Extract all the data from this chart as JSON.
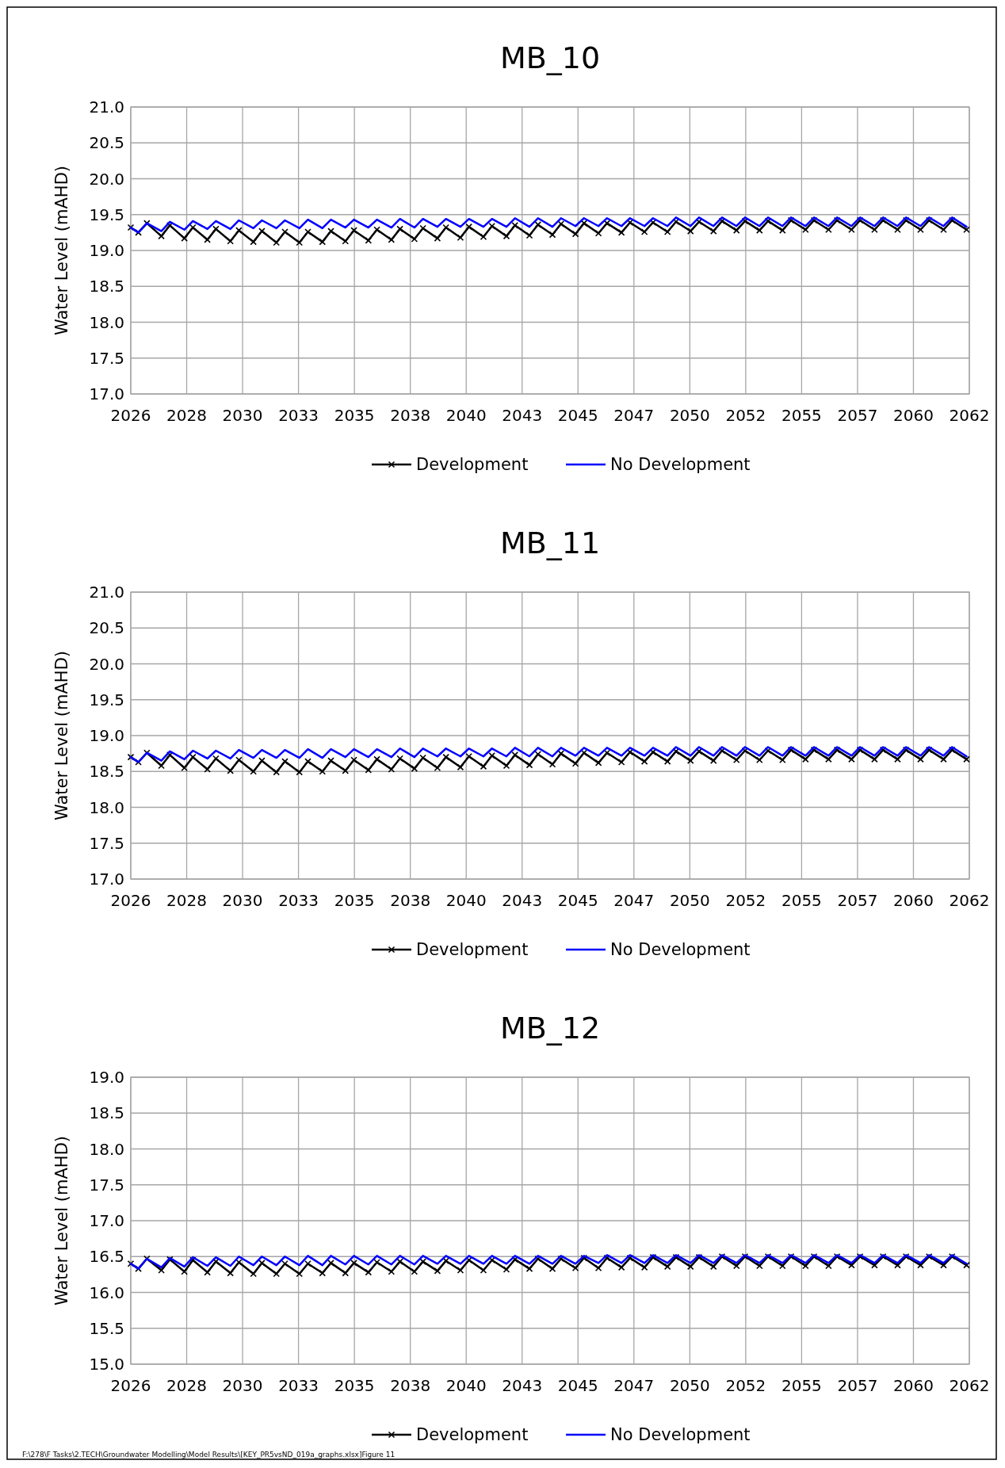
{
  "chart_data": [
    {
      "type": "line",
      "title": "MB_10",
      "ylabel": "Water Level (mAHD)",
      "grid": true,
      "legend": "bottom",
      "x": [
        2025.55,
        2025.88,
        2026.25,
        2026.88,
        2027.25,
        2027.88,
        2028.25,
        2028.88,
        2029.25,
        2029.88,
        2030.25,
        2030.88,
        2031.25,
        2031.88,
        2032.25,
        2032.88,
        2033.25,
        2033.88,
        2034.25,
        2034.88,
        2035.25,
        2035.88,
        2036.25,
        2036.88,
        2037.25,
        2037.88,
        2038.25,
        2038.88,
        2039.25,
        2039.88,
        2040.25,
        2040.88,
        2041.25,
        2041.88,
        2042.25,
        2042.88,
        2043.25,
        2043.88,
        2044.25,
        2044.88,
        2045.25,
        2045.88,
        2046.25,
        2046.88,
        2047.25,
        2047.88,
        2048.25,
        2048.88,
        2049.25,
        2049.88,
        2050.25,
        2050.88,
        2051.25,
        2051.88,
        2052.25,
        2052.88,
        2053.25,
        2053.88,
        2054.25,
        2054.88,
        2055.25,
        2055.88,
        2056.25,
        2056.88,
        2057.25,
        2057.88,
        2058.25,
        2058.88,
        2059.25,
        2059.88,
        2060.25,
        2060.88,
        2061.25,
        2061.88
      ],
      "xlim": [
        2025.55,
        2062.0
      ],
      "xticks": [
        {
          "value": 2025.55,
          "label": "2026"
        },
        {
          "value": 2027.98,
          "label": "2028"
        },
        {
          "value": 2030.41,
          "label": "2030"
        },
        {
          "value": 2032.84,
          "label": "2033"
        },
        {
          "value": 2035.27,
          "label": "2035"
        },
        {
          "value": 2037.7,
          "label": "2038"
        },
        {
          "value": 2040.13,
          "label": "2040"
        },
        {
          "value": 2042.56,
          "label": "2043"
        },
        {
          "value": 2044.99,
          "label": "2045"
        },
        {
          "value": 2047.42,
          "label": "2047"
        },
        {
          "value": 2049.85,
          "label": "2050"
        },
        {
          "value": 2052.28,
          "label": "2052"
        },
        {
          "value": 2054.71,
          "label": "2055"
        },
        {
          "value": 2057.14,
          "label": "2057"
        },
        {
          "value": 2059.57,
          "label": "2060"
        },
        {
          "value": 2062.0,
          "label": "2062"
        }
      ],
      "ylim": [
        17,
        21
      ],
      "yticks": [
        {
          "value": 17,
          "label": "17.0"
        },
        {
          "value": 17.5,
          "label": "17.5"
        },
        {
          "value": 18,
          "label": "18.0"
        },
        {
          "value": 18.5,
          "label": "18.5"
        },
        {
          "value": 19,
          "label": "19.0"
        },
        {
          "value": 19.5,
          "label": "19.5"
        },
        {
          "value": 20,
          "label": "20.0"
        },
        {
          "value": 20.5,
          "label": "20.5"
        },
        {
          "value": 21,
          "label": "21.0"
        }
      ],
      "series": [
        {
          "name": "Development",
          "color": "#000000",
          "marker": "cross",
          "values": [
            19.32,
            19.25,
            19.38,
            19.2,
            19.35,
            19.17,
            19.32,
            19.15,
            19.3,
            19.13,
            19.28,
            19.12,
            19.27,
            19.11,
            19.26,
            19.11,
            19.26,
            19.12,
            19.27,
            19.13,
            19.28,
            19.14,
            19.29,
            19.15,
            19.3,
            19.16,
            19.31,
            19.17,
            19.32,
            19.18,
            19.33,
            19.19,
            19.34,
            19.2,
            19.35,
            19.21,
            19.36,
            19.22,
            19.37,
            19.23,
            19.38,
            19.24,
            19.38,
            19.25,
            19.39,
            19.26,
            19.39,
            19.26,
            19.4,
            19.27,
            19.4,
            19.27,
            19.41,
            19.28,
            19.41,
            19.28,
            19.41,
            19.28,
            19.42,
            19.29,
            19.42,
            19.29,
            19.42,
            19.29,
            19.42,
            19.29,
            19.42,
            19.29,
            19.42,
            19.29,
            19.42,
            19.29,
            19.42,
            19.29
          ]
        },
        {
          "name": "No Development",
          "color": "#0000ff",
          "values": [
            19.32,
            19.25,
            19.38,
            19.27,
            19.4,
            19.29,
            19.41,
            19.3,
            19.41,
            19.3,
            19.42,
            19.31,
            19.42,
            19.31,
            19.42,
            19.31,
            19.43,
            19.31,
            19.43,
            19.32,
            19.43,
            19.32,
            19.43,
            19.32,
            19.44,
            19.32,
            19.44,
            19.33,
            19.44,
            19.33,
            19.44,
            19.33,
            19.44,
            19.33,
            19.45,
            19.33,
            19.45,
            19.33,
            19.45,
            19.34,
            19.45,
            19.34,
            19.45,
            19.34,
            19.45,
            19.34,
            19.45,
            19.34,
            19.46,
            19.34,
            19.46,
            19.34,
            19.46,
            19.34,
            19.46,
            19.34,
            19.46,
            19.34,
            19.46,
            19.34,
            19.46,
            19.34,
            19.46,
            19.34,
            19.46,
            19.34,
            19.46,
            19.34,
            19.46,
            19.34,
            19.46,
            19.34,
            19.46,
            19.33
          ]
        }
      ]
    },
    {
      "type": "line",
      "title": "MB_11",
      "ylabel": "Water Level (mAHD)",
      "grid": true,
      "legend": "bottom",
      "x": [
        2025.55,
        2025.88,
        2026.25,
        2026.88,
        2027.25,
        2027.88,
        2028.25,
        2028.88,
        2029.25,
        2029.88,
        2030.25,
        2030.88,
        2031.25,
        2031.88,
        2032.25,
        2032.88,
        2033.25,
        2033.88,
        2034.25,
        2034.88,
        2035.25,
        2035.88,
        2036.25,
        2036.88,
        2037.25,
        2037.88,
        2038.25,
        2038.88,
        2039.25,
        2039.88,
        2040.25,
        2040.88,
        2041.25,
        2041.88,
        2042.25,
        2042.88,
        2043.25,
        2043.88,
        2044.25,
        2044.88,
        2045.25,
        2045.88,
        2046.25,
        2046.88,
        2047.25,
        2047.88,
        2048.25,
        2048.88,
        2049.25,
        2049.88,
        2050.25,
        2050.88,
        2051.25,
        2051.88,
        2052.25,
        2052.88,
        2053.25,
        2053.88,
        2054.25,
        2054.88,
        2055.25,
        2055.88,
        2056.25,
        2056.88,
        2057.25,
        2057.88,
        2058.25,
        2058.88,
        2059.25,
        2059.88,
        2060.25,
        2060.88,
        2061.25,
        2061.88
      ],
      "xlim": [
        2025.55,
        2062.0
      ],
      "xticks": [
        {
          "value": 2025.55,
          "label": "2026"
        },
        {
          "value": 2027.98,
          "label": "2028"
        },
        {
          "value": 2030.41,
          "label": "2030"
        },
        {
          "value": 2032.84,
          "label": "2033"
        },
        {
          "value": 2035.27,
          "label": "2035"
        },
        {
          "value": 2037.7,
          "label": "2038"
        },
        {
          "value": 2040.13,
          "label": "2040"
        },
        {
          "value": 2042.56,
          "label": "2043"
        },
        {
          "value": 2044.99,
          "label": "2045"
        },
        {
          "value": 2047.42,
          "label": "2047"
        },
        {
          "value": 2049.85,
          "label": "2050"
        },
        {
          "value": 2052.28,
          "label": "2052"
        },
        {
          "value": 2054.71,
          "label": "2055"
        },
        {
          "value": 2057.14,
          "label": "2057"
        },
        {
          "value": 2059.57,
          "label": "2060"
        },
        {
          "value": 2062.0,
          "label": "2062"
        }
      ],
      "ylim": [
        17,
        21
      ],
      "yticks": [
        {
          "value": 17,
          "label": "17.0"
        },
        {
          "value": 17.5,
          "label": "17.5"
        },
        {
          "value": 18,
          "label": "18.0"
        },
        {
          "value": 18.5,
          "label": "18.5"
        },
        {
          "value": 19,
          "label": "19.0"
        },
        {
          "value": 19.5,
          "label": "19.5"
        },
        {
          "value": 20,
          "label": "20.0"
        },
        {
          "value": 20.5,
          "label": "20.5"
        },
        {
          "value": 21,
          "label": "21.0"
        }
      ],
      "series": [
        {
          "name": "Development",
          "color": "#000000",
          "marker": "cross",
          "values": [
            18.7,
            18.63,
            18.76,
            18.58,
            18.73,
            18.55,
            18.7,
            18.53,
            18.68,
            18.51,
            18.66,
            18.5,
            18.65,
            18.49,
            18.64,
            18.49,
            18.64,
            18.5,
            18.65,
            18.51,
            18.66,
            18.52,
            18.67,
            18.53,
            18.68,
            18.54,
            18.69,
            18.55,
            18.7,
            18.56,
            18.71,
            18.57,
            18.72,
            18.58,
            18.73,
            18.59,
            18.74,
            18.6,
            18.75,
            18.61,
            18.76,
            18.62,
            18.76,
            18.63,
            18.77,
            18.64,
            18.77,
            18.64,
            18.78,
            18.65,
            18.78,
            18.65,
            18.79,
            18.66,
            18.79,
            18.66,
            18.79,
            18.66,
            18.8,
            18.67,
            18.8,
            18.67,
            18.8,
            18.67,
            18.8,
            18.67,
            18.8,
            18.67,
            18.8,
            18.67,
            18.8,
            18.67,
            18.8,
            18.67
          ]
        },
        {
          "name": "No Development",
          "color": "#0000ff",
          "values": [
            18.7,
            18.63,
            18.76,
            18.65,
            18.78,
            18.67,
            18.79,
            18.68,
            18.79,
            18.68,
            18.8,
            18.69,
            18.8,
            18.69,
            18.8,
            18.69,
            18.81,
            18.69,
            18.81,
            18.7,
            18.81,
            18.7,
            18.81,
            18.7,
            18.82,
            18.7,
            18.82,
            18.71,
            18.82,
            18.71,
            18.82,
            18.71,
            18.82,
            18.71,
            18.83,
            18.71,
            18.83,
            18.71,
            18.83,
            18.72,
            18.83,
            18.72,
            18.83,
            18.72,
            18.83,
            18.72,
            18.83,
            18.72,
            18.84,
            18.72,
            18.84,
            18.72,
            18.84,
            18.72,
            18.84,
            18.72,
            18.84,
            18.72,
            18.84,
            18.72,
            18.84,
            18.72,
            18.84,
            18.72,
            18.84,
            18.72,
            18.84,
            18.72,
            18.84,
            18.72,
            18.84,
            18.72,
            18.84,
            18.71
          ]
        }
      ]
    },
    {
      "type": "line",
      "title": "MB_12",
      "ylabel": "Water Level (mAHD)",
      "grid": true,
      "legend": "bottom",
      "x": [
        2025.55,
        2025.88,
        2026.25,
        2026.88,
        2027.25,
        2027.88,
        2028.25,
        2028.88,
        2029.25,
        2029.88,
        2030.25,
        2030.88,
        2031.25,
        2031.88,
        2032.25,
        2032.88,
        2033.25,
        2033.88,
        2034.25,
        2034.88,
        2035.25,
        2035.88,
        2036.25,
        2036.88,
        2037.25,
        2037.88,
        2038.25,
        2038.88,
        2039.25,
        2039.88,
        2040.25,
        2040.88,
        2041.25,
        2041.88,
        2042.25,
        2042.88,
        2043.25,
        2043.88,
        2044.25,
        2044.88,
        2045.25,
        2045.88,
        2046.25,
        2046.88,
        2047.25,
        2047.88,
        2048.25,
        2048.88,
        2049.25,
        2049.88,
        2050.25,
        2050.88,
        2051.25,
        2051.88,
        2052.25,
        2052.88,
        2053.25,
        2053.88,
        2054.25,
        2054.88,
        2055.25,
        2055.88,
        2056.25,
        2056.88,
        2057.25,
        2057.88,
        2058.25,
        2058.88,
        2059.25,
        2059.88,
        2060.25,
        2060.88,
        2061.25,
        2061.88
      ],
      "xlim": [
        2025.55,
        2062.0
      ],
      "xticks": [
        {
          "value": 2025.55,
          "label": "2026"
        },
        {
          "value": 2027.98,
          "label": "2028"
        },
        {
          "value": 2030.41,
          "label": "2030"
        },
        {
          "value": 2032.84,
          "label": "2033"
        },
        {
          "value": 2035.27,
          "label": "2035"
        },
        {
          "value": 2037.7,
          "label": "2038"
        },
        {
          "value": 2040.13,
          "label": "2040"
        },
        {
          "value": 2042.56,
          "label": "2043"
        },
        {
          "value": 2044.99,
          "label": "2045"
        },
        {
          "value": 2047.42,
          "label": "2047"
        },
        {
          "value": 2049.85,
          "label": "2050"
        },
        {
          "value": 2052.28,
          "label": "2052"
        },
        {
          "value": 2054.71,
          "label": "2055"
        },
        {
          "value": 2057.14,
          "label": "2057"
        },
        {
          "value": 2059.57,
          "label": "2060"
        },
        {
          "value": 2062.0,
          "label": "2062"
        }
      ],
      "ylim": [
        15,
        19
      ],
      "yticks": [
        {
          "value": 15,
          "label": "15.0"
        },
        {
          "value": 15.5,
          "label": "15.5"
        },
        {
          "value": 16,
          "label": "16.0"
        },
        {
          "value": 16.5,
          "label": "16.5"
        },
        {
          "value": 17,
          "label": "17.0"
        },
        {
          "value": 17.5,
          "label": "17.5"
        },
        {
          "value": 18,
          "label": "18.0"
        },
        {
          "value": 18.5,
          "label": "18.5"
        },
        {
          "value": 19,
          "label": "19.0"
        }
      ],
      "series": [
        {
          "name": "Development",
          "color": "#000000",
          "marker": "cross",
          "values": [
            16.4,
            16.33,
            16.47,
            16.31,
            16.46,
            16.29,
            16.45,
            16.28,
            16.43,
            16.27,
            16.42,
            16.26,
            16.41,
            16.26,
            16.4,
            16.26,
            16.4,
            16.27,
            16.41,
            16.27,
            16.41,
            16.28,
            16.42,
            16.29,
            16.43,
            16.29,
            16.43,
            16.3,
            16.44,
            16.31,
            16.45,
            16.31,
            16.45,
            16.32,
            16.46,
            16.33,
            16.47,
            16.33,
            16.47,
            16.34,
            16.48,
            16.34,
            16.48,
            16.35,
            16.48,
            16.35,
            16.49,
            16.36,
            16.49,
            16.36,
            16.49,
            16.36,
            16.5,
            16.37,
            16.5,
            16.37,
            16.5,
            16.37,
            16.5,
            16.37,
            16.5,
            16.37,
            16.5,
            16.38,
            16.5,
            16.38,
            16.5,
            16.38,
            16.5,
            16.38,
            16.5,
            16.38,
            16.5,
            16.38
          ]
        },
        {
          "name": "No Development",
          "color": "#0000ff",
          "values": [
            16.4,
            16.33,
            16.47,
            16.35,
            16.48,
            16.36,
            16.49,
            16.37,
            16.49,
            16.37,
            16.5,
            16.38,
            16.5,
            16.38,
            16.5,
            16.38,
            16.51,
            16.38,
            16.51,
            16.39,
            16.51,
            16.39,
            16.51,
            16.39,
            16.51,
            16.39,
            16.51,
            16.4,
            16.51,
            16.4,
            16.51,
            16.4,
            16.51,
            16.4,
            16.51,
            16.4,
            16.51,
            16.4,
            16.51,
            16.4,
            16.51,
            16.41,
            16.52,
            16.41,
            16.52,
            16.41,
            16.52,
            16.41,
            16.52,
            16.41,
            16.52,
            16.41,
            16.52,
            16.41,
            16.52,
            16.41,
            16.52,
            16.41,
            16.52,
            16.41,
            16.52,
            16.41,
            16.52,
            16.41,
            16.52,
            16.41,
            16.52,
            16.41,
            16.52,
            16.41,
            16.52,
            16.41,
            16.52,
            16.4
          ]
        }
      ],
      "annotations": [
        "F:\\278\\F Tasks\\2.TECH\\Groundwater Modelling\\Model Results\\[KEY_PR5vsND_019a_graphs.xlsx]Figure 11"
      ]
    }
  ]
}
